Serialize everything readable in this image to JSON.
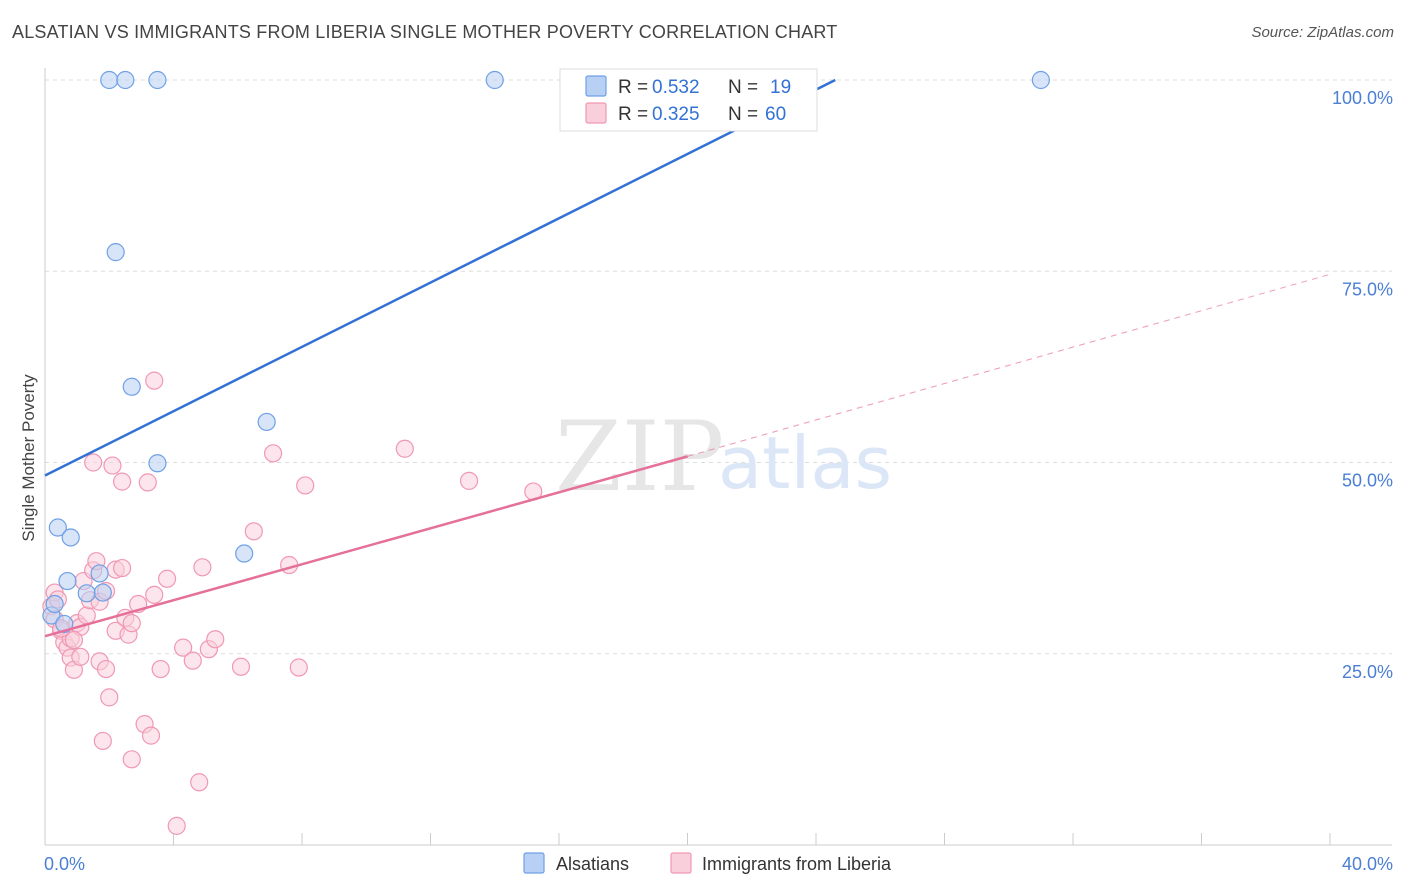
{
  "header": {
    "title": "ALSATIAN VS IMMIGRANTS FROM LIBERIA SINGLE MOTHER POVERTY CORRELATION CHART",
    "source": "Source: ZipAtlas.com"
  },
  "watermark": {
    "zip": "ZIP",
    "atlas": "atlas"
  },
  "chart_data": {
    "type": "scatter",
    "title": "ALSATIAN VS IMMIGRANTS FROM LIBERIA SINGLE MOTHER POVERTY CORRELATION CHART",
    "xlabel": "",
    "ylabel": "Single Mother Poverty",
    "xlim": [
      0,
      40
    ],
    "ylim": [
      0,
      100
    ],
    "x_ticks_labels": [
      "0.0%",
      "40.0%"
    ],
    "y_tick_values": [
      25,
      50,
      75,
      100
    ],
    "y_ticks_labels": [
      "25.0%",
      "50.0%",
      "75.0%",
      "100.0%"
    ],
    "grid": true,
    "legend_position": "top-center",
    "colors": {
      "alsatians": "#6fa0e6",
      "alsatians_fill": "#b8d0f3",
      "liberia": "#f098b3",
      "liberia_fill": "#f9cfdc",
      "alsatians_line": "#3272d4",
      "liberia_line": "#e5709a",
      "tick_text": "#4a7fd4"
    },
    "stats": [
      {
        "r_label": "R =",
        "r_value": "0.532",
        "n_label": "N =",
        "n_value": "19"
      },
      {
        "r_label": "R =",
        "r_value": "0.325",
        "n_label": "N =",
        "n_value": "60"
      }
    ],
    "series": [
      {
        "name": "Alsatians",
        "points": [
          [
            2.0,
            100
          ],
          [
            2.5,
            100
          ],
          [
            3.5,
            100
          ],
          [
            14.0,
            100
          ],
          [
            31.0,
            100
          ],
          [
            2.2,
            77.5
          ],
          [
            2.7,
            59.9
          ],
          [
            3.5,
            49.9
          ],
          [
            6.9,
            55.3
          ],
          [
            6.2,
            38.1
          ],
          [
            0.4,
            41.5
          ],
          [
            0.8,
            40.2
          ],
          [
            0.7,
            34.5
          ],
          [
            1.7,
            35.5
          ],
          [
            1.3,
            32.9
          ],
          [
            1.8,
            33.0
          ],
          [
            0.2,
            30.0
          ],
          [
            0.6,
            28.9
          ],
          [
            0.3,
            31.5
          ]
        ],
        "trend": {
          "x": [
            0,
            24.6
          ],
          "y": [
            48.3,
            100
          ]
        }
      },
      {
        "name": "Immigrants from Liberia",
        "points": [
          [
            0.2,
            31.2
          ],
          [
            0.3,
            29.5
          ],
          [
            0.3,
            33.0
          ],
          [
            0.4,
            32.1
          ],
          [
            0.5,
            28.0
          ],
          [
            0.6,
            26.5
          ],
          [
            0.7,
            25.8
          ],
          [
            0.8,
            27.0
          ],
          [
            0.8,
            24.5
          ],
          [
            0.9,
            22.9
          ],
          [
            1.0,
            29.0
          ],
          [
            1.1,
            24.6
          ],
          [
            1.1,
            28.5
          ],
          [
            1.2,
            34.5
          ],
          [
            1.3,
            30.0
          ],
          [
            1.4,
            32.0
          ],
          [
            1.5,
            35.9
          ],
          [
            1.5,
            50.0
          ],
          [
            1.6,
            37.1
          ],
          [
            1.7,
            24.0
          ],
          [
            1.7,
            31.8
          ],
          [
            1.9,
            33.2
          ],
          [
            1.9,
            23.0
          ],
          [
            2.0,
            19.3
          ],
          [
            1.8,
            13.6
          ],
          [
            2.1,
            49.6
          ],
          [
            2.2,
            36.0
          ],
          [
            2.2,
            28.0
          ],
          [
            2.4,
            47.5
          ],
          [
            2.4,
            36.2
          ],
          [
            2.5,
            29.7
          ],
          [
            2.6,
            27.5
          ],
          [
            2.7,
            11.2
          ],
          [
            2.7,
            29.0
          ],
          [
            2.9,
            31.5
          ],
          [
            3.1,
            15.8
          ],
          [
            3.2,
            47.4
          ],
          [
            3.3,
            14.3
          ],
          [
            3.4,
            60.7
          ],
          [
            3.4,
            32.7
          ],
          [
            3.6,
            23.0
          ],
          [
            3.8,
            34.8
          ],
          [
            4.1,
            2.5
          ],
          [
            4.3,
            25.8
          ],
          [
            4.6,
            24.1
          ],
          [
            4.8,
            8.2
          ],
          [
            4.9,
            36.3
          ],
          [
            5.1,
            25.6
          ],
          [
            5.3,
            26.9
          ],
          [
            6.1,
            23.3
          ],
          [
            6.5,
            41.0
          ],
          [
            7.1,
            51.2
          ],
          [
            7.6,
            36.6
          ],
          [
            7.9,
            23.2
          ],
          [
            8.1,
            47.0
          ],
          [
            11.2,
            51.8
          ],
          [
            13.2,
            47.6
          ],
          [
            15.2,
            46.2
          ],
          [
            0.5,
            28.3
          ],
          [
            0.9,
            26.8
          ]
        ],
        "trend": {
          "x": [
            0,
            20
          ],
          "y": [
            27.3,
            50.8
          ]
        },
        "trend_dashed": {
          "x": [
            20,
            40
          ],
          "y": [
            50.8,
            74.6
          ]
        }
      }
    ]
  }
}
